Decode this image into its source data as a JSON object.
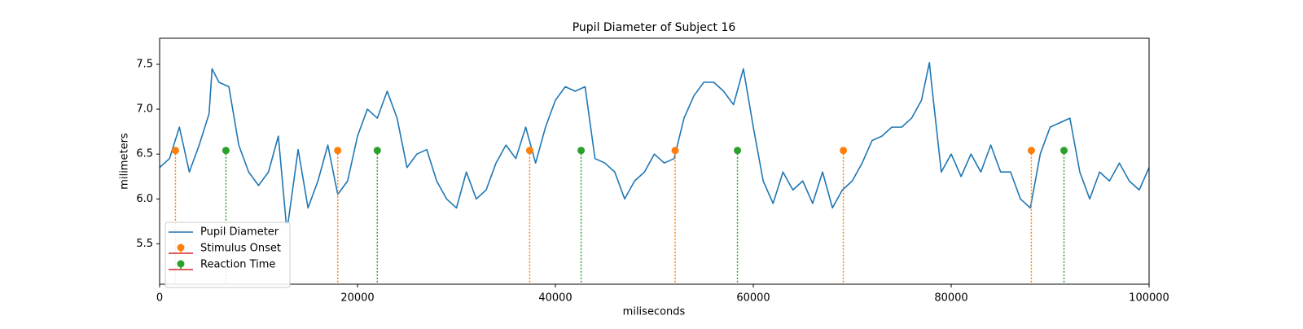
{
  "chart_data": {
    "type": "line",
    "title": "Pupil Diameter of Subject 16",
    "xlabel": "miliseconds",
    "ylabel": "milimeters",
    "xlim": [
      0,
      100000
    ],
    "ylim": [
      5.05,
      7.79
    ],
    "xticks": [
      0,
      20000,
      40000,
      60000,
      80000,
      100000
    ],
    "yticks": [
      5.5,
      {
        "value": 6,
        "label": "6.0"
      },
      6.5,
      {
        "value": 7,
        "label": "7.0"
      },
      7.5
    ],
    "legend": "lower left",
    "baseline_color": "#d62728",
    "series": [
      {
        "name": "Pupil Diameter",
        "kind": "line",
        "color": "#1f77b4",
        "x": [
          0,
          1000,
          2000,
          3000,
          4000,
          5000,
          5300,
          6000,
          7000,
          8000,
          9000,
          10000,
          11000,
          12000,
          12800,
          13000,
          14000,
          15000,
          16000,
          17000,
          18000,
          19000,
          20000,
          21000,
          22000,
          23000,
          24000,
          25000,
          26000,
          27000,
          28000,
          29000,
          30000,
          31000,
          32000,
          33000,
          34000,
          35000,
          36000,
          37000,
          38000,
          39000,
          40000,
          41000,
          42000,
          43000,
          44000,
          45000,
          46000,
          47000,
          48000,
          49000,
          50000,
          51000,
          52000,
          53000,
          54000,
          55000,
          56000,
          57000,
          58000,
          59000,
          60000,
          61000,
          62000,
          63000,
          64000,
          65000,
          66000,
          67000,
          68000,
          69000,
          70000,
          71000,
          72000,
          73000,
          74000,
          75000,
          76000,
          77000,
          77800,
          78000,
          79000,
          80000,
          81000,
          82000,
          83000,
          84000,
          85000,
          86000,
          87000,
          88000,
          89000,
          90000,
          91000,
          92000,
          93000,
          94000,
          95000,
          96000,
          97000,
          98000,
          99000,
          100000
        ],
        "values": [
          6.35,
          6.45,
          6.8,
          6.3,
          6.6,
          6.95,
          7.45,
          7.3,
          7.25,
          6.6,
          6.3,
          6.15,
          6.3,
          6.7,
          5.72,
          5.75,
          6.55,
          5.9,
          6.2,
          6.6,
          6.05,
          6.2,
          6.7,
          7.0,
          6.9,
          7.2,
          6.9,
          6.35,
          6.5,
          6.55,
          6.2,
          6.0,
          5.9,
          6.3,
          6.0,
          6.1,
          6.4,
          6.6,
          6.45,
          6.8,
          6.4,
          6.8,
          7.1,
          7.25,
          7.2,
          7.25,
          6.45,
          6.4,
          6.3,
          6.0,
          6.2,
          6.3,
          6.5,
          6.4,
          6.45,
          6.9,
          7.15,
          7.3,
          7.3,
          7.2,
          7.05,
          7.45,
          6.8,
          6.2,
          5.95,
          6.3,
          6.1,
          6.2,
          5.95,
          6.3,
          5.9,
          6.1,
          6.2,
          6.4,
          6.65,
          6.7,
          6.8,
          6.8,
          6.9,
          7.1,
          7.52,
          7.3,
          6.3,
          6.5,
          6.25,
          6.5,
          6.3,
          6.6,
          6.3,
          6.3,
          6.0,
          5.9,
          6.5,
          6.8,
          6.85,
          6.9,
          6.3,
          6.0,
          6.3,
          6.2,
          6.4,
          6.2,
          6.1,
          6.35
        ]
      },
      {
        "name": "Stimulus Onset",
        "kind": "stem",
        "color": "#ff7f0e",
        "x": [
          1600,
          18000,
          37400,
          52100,
          69100,
          88100
        ],
        "values": [
          6.54,
          6.54,
          6.54,
          6.54,
          6.54,
          6.54
        ]
      },
      {
        "name": "Reaction Time",
        "kind": "stem",
        "color": "#2ca02c",
        "x": [
          6700,
          22000,
          42600,
          58400,
          91400
        ],
        "values": [
          6.54,
          6.54,
          6.54,
          6.54,
          6.54
        ]
      }
    ]
  }
}
